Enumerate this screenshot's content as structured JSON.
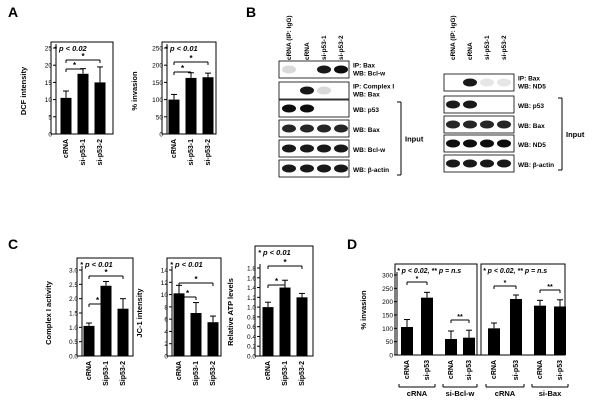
{
  "panels": {
    "A": {
      "label": "A",
      "charts": [
        {
          "stats": "* p < 0.02",
          "ylabel": "DCF intensity",
          "categories": [
            "cRNA",
            "si-p53-1",
            "si-p53-2"
          ],
          "ticks": [
            "0",
            "5",
            "10",
            "15",
            "20",
            "25"
          ]
        },
        {
          "stats": "* p < 0.01",
          "ylabel": "% invasion",
          "categories": [
            "cRNA",
            "si-p53-1",
            "si-p53-2"
          ],
          "ticks": [
            "0",
            "50",
            "100",
            "150",
            "200",
            "250"
          ]
        }
      ]
    },
    "B": {
      "label": "B",
      "left": {
        "columns": [
          "cRNA (IP: IgG)",
          "cRNA",
          "si-p53-1",
          "si-p53-2"
        ],
        "rows": [
          "IP: Bax\nWB: Bcl-w",
          "IP: Complex I\nWB: Bax",
          "WB: p53",
          "WB: Bax",
          "WB: Bcl-w",
          "WB: β-actin"
        ],
        "input_label": "Input"
      },
      "right": {
        "columns": [
          "cRNA (IP: IgG)",
          "cRNA",
          "si-p53-1",
          "si-p53-2"
        ],
        "rows": [
          "IP: Bax\nWB: ND5",
          "WB: p53",
          "WB: Bax",
          "WB: ND5",
          "WB: β-actin"
        ],
        "input_label": "Input"
      }
    },
    "C": {
      "label": "C",
      "charts": [
        {
          "stats": "* p < 0.01",
          "ylabel": "Complex I activity",
          "categories": [
            "cRNA",
            "Sip53-1",
            "Sip53-2"
          ],
          "ticks": [
            "0.0",
            "0.5",
            "1.0",
            "1.5",
            "2.0",
            "2.5",
            "3.0"
          ]
        },
        {
          "stats": "* p < 0.01",
          "ylabel": "JC-1 intensity",
          "categories": [
            "cRNA",
            "Sip53-1",
            "Sip53-2"
          ],
          "ticks": [
            "0",
            "2",
            "4",
            "6",
            "8",
            "10",
            "12",
            "14"
          ]
        },
        {
          "stats": "* p < 0.01",
          "ylabel": "Relative ATP levels",
          "categories": [
            "cRNA",
            "Sip53-1",
            "Sip53-2"
          ],
          "ticks": [
            "0.0",
            "0.2",
            "0.4",
            "0.6",
            "0.8",
            "1.0",
            "1.2",
            "1.4",
            "1.6",
            "1.8"
          ]
        }
      ]
    },
    "D": {
      "label": "D",
      "stats": "* p < 0.02, ** p = n.s",
      "ylabel": "% invasion",
      "ticks": [
        "0",
        "50",
        "100",
        "150",
        "200",
        "250",
        "300"
      ],
      "groups": [
        {
          "categories": [
            "cRNA",
            "si-p53"
          ],
          "group_label": "cRNA"
        },
        {
          "categories": [
            "cRNA",
            "si-p53"
          ],
          "group_label": "si-Bcl-w"
        },
        {
          "categories": [
            "cRNA",
            "si-p53"
          ],
          "group_label": "cRNA"
        },
        {
          "categories": [
            "cRNA",
            "si-p53"
          ],
          "group_label": "si-Bax"
        }
      ]
    }
  },
  "chart_data": [
    {
      "panel": "A",
      "type": "bar",
      "title": "* p < 0.02",
      "xlabel": "",
      "ylabel": "DCF intensity",
      "categories": [
        "cRNA",
        "si-p53-1",
        "si-p53-2"
      ],
      "values": [
        10.5,
        17.5,
        15.0
      ],
      "errors": [
        2,
        1.5,
        4.5
      ],
      "ylim": [
        0,
        25
      ],
      "significance": [
        [
          "cRNA",
          "si-p53-1"
        ],
        [
          "cRNA",
          "si-p53-2"
        ]
      ]
    },
    {
      "panel": "A",
      "type": "bar",
      "title": "* p < 0.01",
      "xlabel": "",
      "ylabel": "% invasion",
      "categories": [
        "cRNA",
        "si-p53-1",
        "si-p53-2"
      ],
      "values": [
        100,
        163,
        165
      ],
      "errors": [
        15,
        15,
        12
      ],
      "ylim": [
        0,
        250
      ],
      "significance": [
        [
          "cRNA",
          "si-p53-1"
        ],
        [
          "cRNA",
          "si-p53-2"
        ]
      ]
    },
    {
      "panel": "C",
      "type": "bar",
      "title": "* p < 0.01",
      "xlabel": "",
      "ylabel": "Complex I activity",
      "categories": [
        "cRNA",
        "Sip53-1",
        "Sip53-2"
      ],
      "values": [
        1.05,
        2.45,
        1.65
      ],
      "errors": [
        0.1,
        0.15,
        0.35
      ],
      "ylim": [
        0,
        3.0
      ],
      "significance": [
        [
          "cRNA",
          "Sip53-1"
        ],
        [
          "cRNA",
          "Sip53-2"
        ]
      ]
    },
    {
      "panel": "C",
      "type": "bar",
      "title": "* p < 0.01",
      "xlabel": "",
      "ylabel": "JC-1 intensity",
      "categories": [
        "cRNA",
        "Sip53-1",
        "Sip53-2"
      ],
      "values": [
        10.2,
        7.0,
        5.5
      ],
      "errors": [
        1.3,
        1.7,
        1.0
      ],
      "ylim": [
        0,
        14
      ],
      "significance": [
        [
          "cRNA",
          "Sip53-1"
        ],
        [
          "cRNA",
          "Sip53-2"
        ]
      ]
    },
    {
      "panel": "C",
      "type": "bar",
      "title": "* p < 0.01",
      "xlabel": "",
      "ylabel": "Relative ATP levels",
      "categories": [
        "cRNA",
        "Sip53-1",
        "Sip53-2"
      ],
      "values": [
        1.0,
        1.4,
        1.2
      ],
      "errors": [
        0.1,
        0.15,
        0.08
      ],
      "ylim": [
        0,
        1.8
      ],
      "significance": [
        [
          "cRNA",
          "Sip53-1"
        ],
        [
          "cRNA",
          "Sip53-2"
        ]
      ]
    },
    {
      "panel": "D",
      "type": "bar",
      "title": "* p < 0.02, ** p = n.s",
      "xlabel": "",
      "ylabel": "% invasion",
      "categories": [
        "cRNA",
        "si-p53",
        "cRNA",
        "si-p53"
      ],
      "group_labels": [
        "cRNA",
        "si-Bcl-w"
      ],
      "values": [
        105,
        215,
        60,
        65
      ],
      "errors": [
        28,
        20,
        30,
        28
      ],
      "ylim": [
        0,
        300
      ],
      "significance": [
        [
          "*",
          0,
          1
        ],
        [
          "**",
          2,
          3
        ]
      ]
    },
    {
      "panel": "D",
      "type": "bar",
      "title": "",
      "xlabel": "",
      "ylabel": "",
      "categories": [
        "cRNA",
        "si-p53",
        "cRNA",
        "si-p53"
      ],
      "group_labels": [
        "cRNA",
        "si-Bax"
      ],
      "values": [
        100,
        210,
        185,
        182
      ],
      "errors": [
        20,
        15,
        20,
        25
      ],
      "ylim": [
        0,
        300
      ],
      "significance": [
        [
          "*",
          0,
          1
        ],
        [
          "**",
          2,
          3
        ]
      ]
    }
  ]
}
